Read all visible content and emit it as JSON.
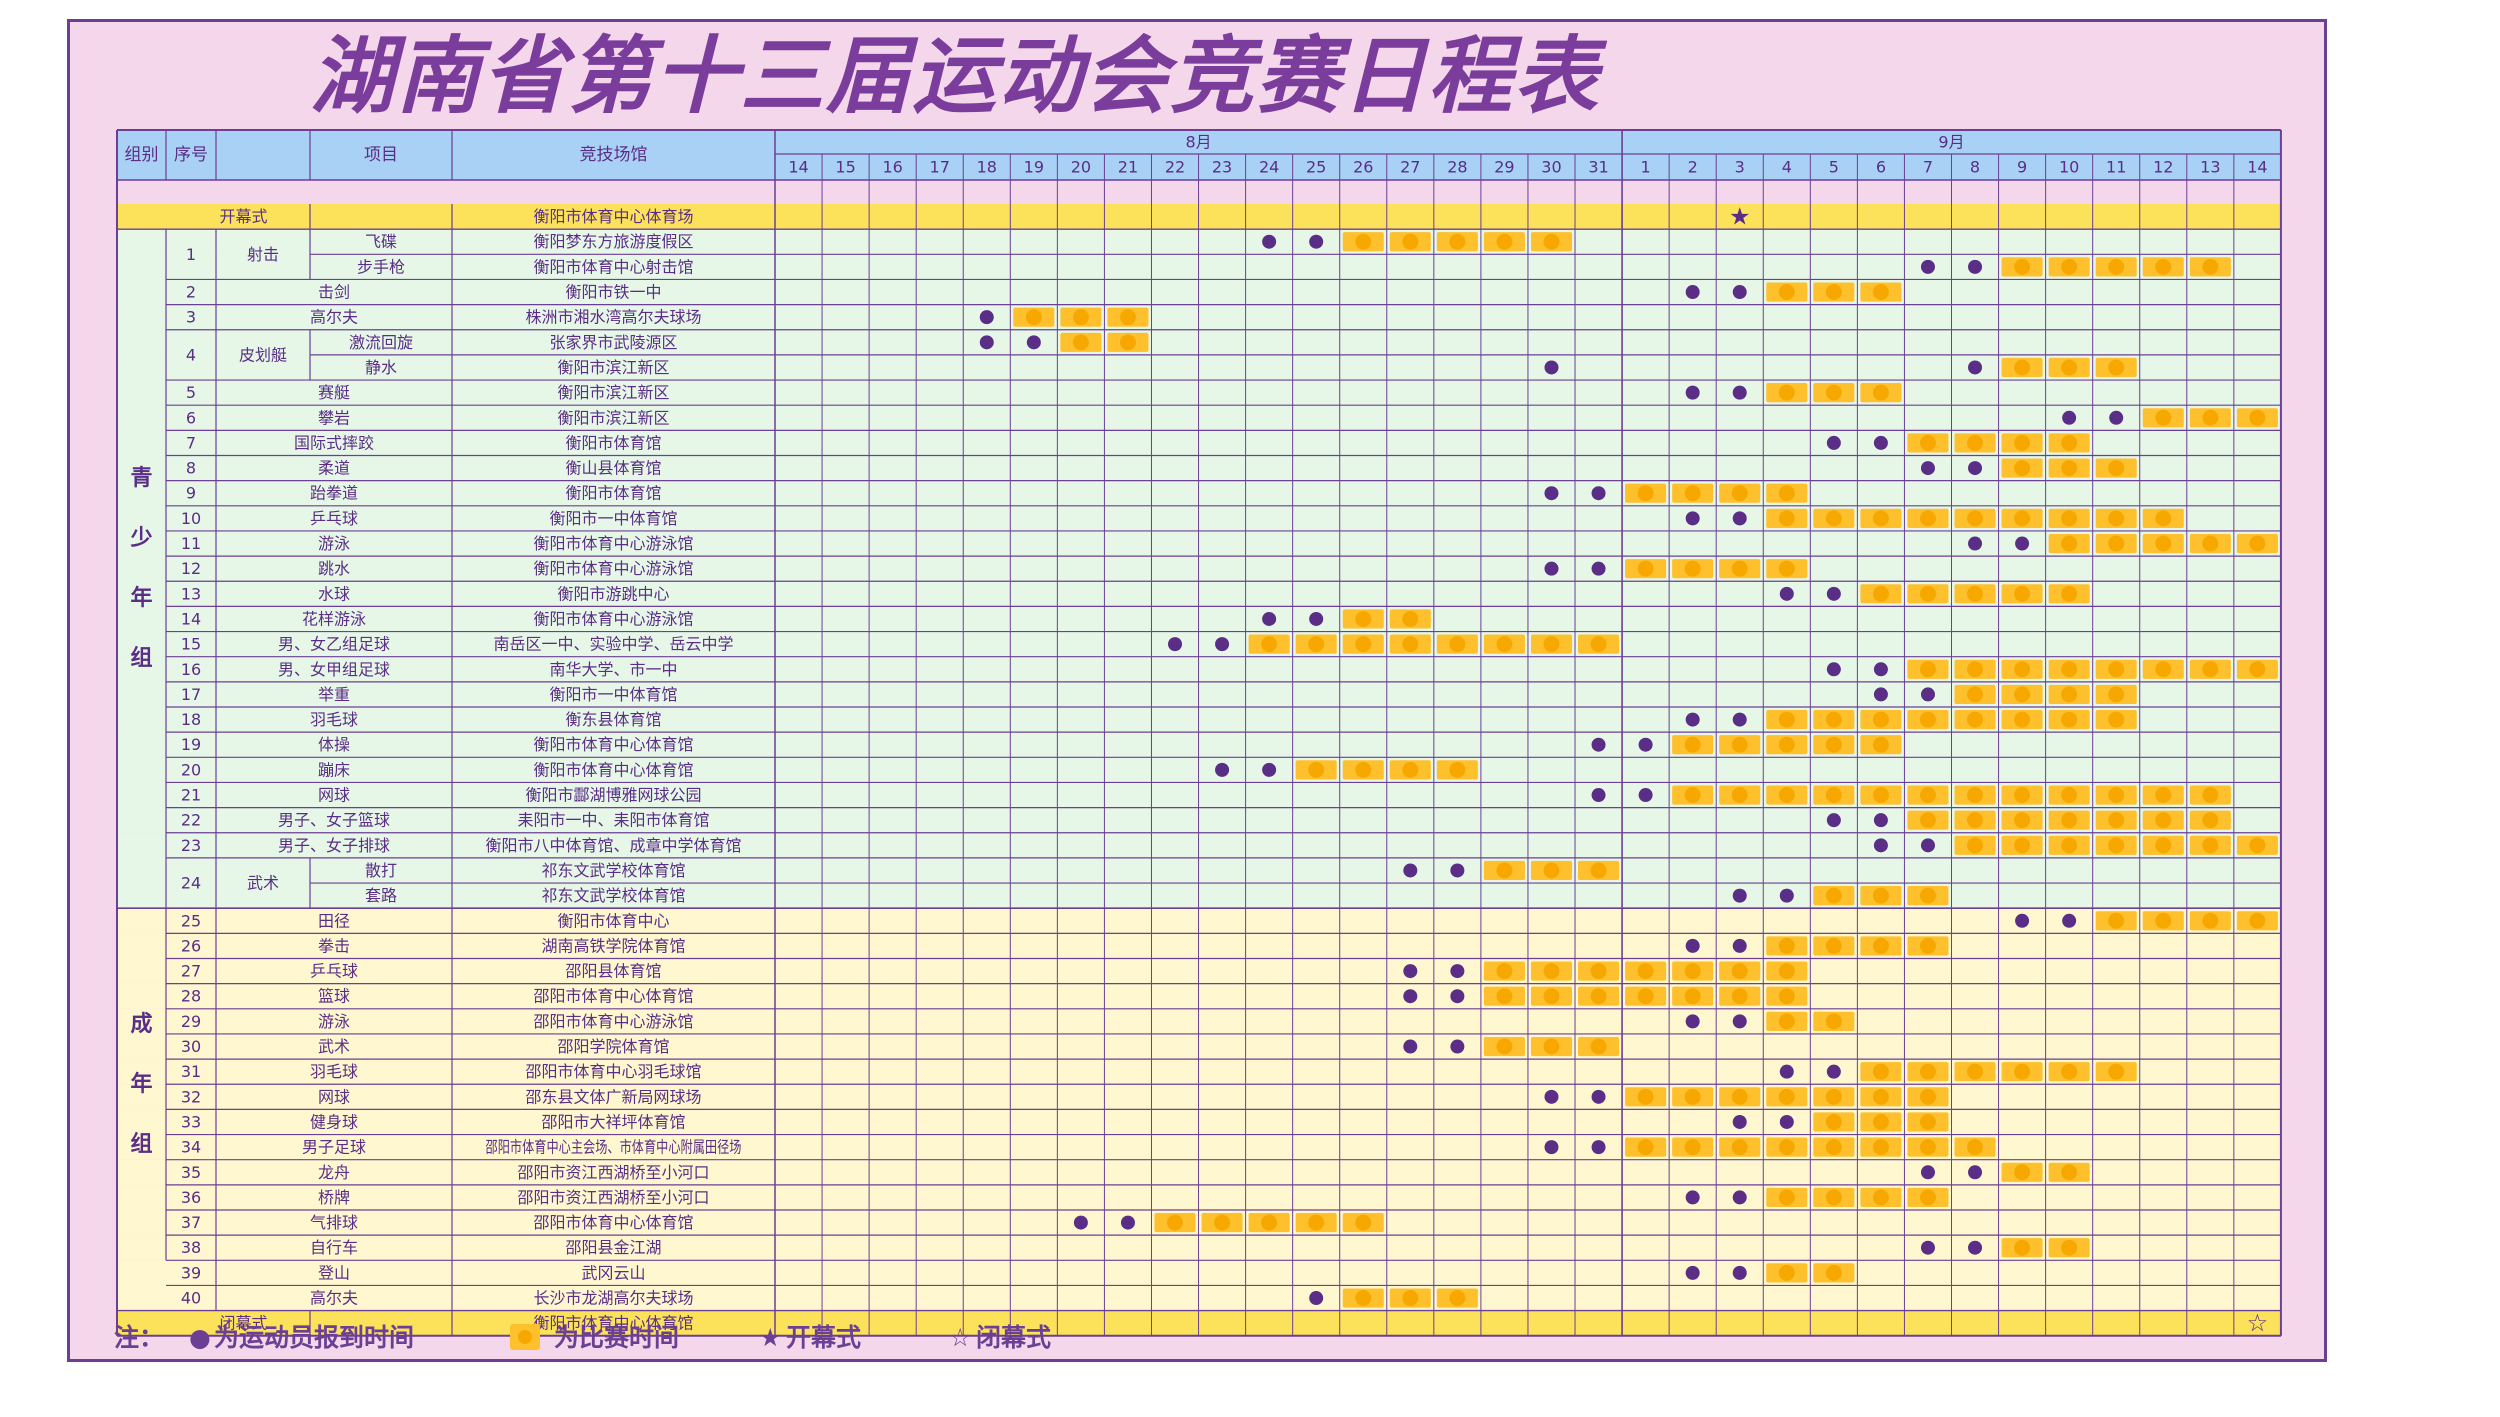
{
  "title": "湖南省第十三届运动会竞赛日程表",
  "colors": {
    "frame_bg": "#f4d7ea",
    "border": "#6b3f94",
    "header_bg": "#a9d0f5",
    "youth_bg": "#e6f7e8",
    "adult_bg": "#fef7cf",
    "ceremony_bg": "#fbe25a",
    "competition": "#ffc02e",
    "registration": "#5a2e86"
  },
  "headers": {
    "group": "组别",
    "index": "序号",
    "item": "项目",
    "venue": "竞技场馆",
    "aug": "8月",
    "sep": "9月"
  },
  "days": [
    {
      "k": "a14",
      "l": "14"
    },
    {
      "k": "a15",
      "l": "15"
    },
    {
      "k": "a16",
      "l": "16"
    },
    {
      "k": "a17",
      "l": "17"
    },
    {
      "k": "a18",
      "l": "18"
    },
    {
      "k": "a19",
      "l": "19"
    },
    {
      "k": "a20",
      "l": "20"
    },
    {
      "k": "a21",
      "l": "21"
    },
    {
      "k": "a22",
      "l": "22"
    },
    {
      "k": "a23",
      "l": "23"
    },
    {
      "k": "a24",
      "l": "24"
    },
    {
      "k": "a25",
      "l": "25"
    },
    {
      "k": "a26",
      "l": "26"
    },
    {
      "k": "a27",
      "l": "27"
    },
    {
      "k": "a28",
      "l": "28"
    },
    {
      "k": "a29",
      "l": "29"
    },
    {
      "k": "a30",
      "l": "30"
    },
    {
      "k": "a31",
      "l": "31"
    },
    {
      "k": "s1",
      "l": "1"
    },
    {
      "k": "s2",
      "l": "2"
    },
    {
      "k": "s3",
      "l": "3"
    },
    {
      "k": "s4",
      "l": "4"
    },
    {
      "k": "s5",
      "l": "5"
    },
    {
      "k": "s6",
      "l": "6"
    },
    {
      "k": "s7",
      "l": "7"
    },
    {
      "k": "s8",
      "l": "8"
    },
    {
      "k": "s9",
      "l": "9"
    },
    {
      "k": "s10",
      "l": "10"
    },
    {
      "k": "s11",
      "l": "11"
    },
    {
      "k": "s12",
      "l": "12"
    },
    {
      "k": "s13",
      "l": "13"
    },
    {
      "k": "s14",
      "l": "14"
    }
  ],
  "groups": [
    {
      "label": "青\n少\n年\n组",
      "rows": [
        1,
        27
      ]
    },
    {
      "label": "成\n年\n组",
      "rows": [
        28,
        41
      ]
    }
  ],
  "rows": [
    {
      "type": "ceremony",
      "item": "开幕式",
      "venue": "衡阳市体育中心体育场",
      "marks": {
        "s3": "star"
      }
    },
    {
      "no": "1",
      "cat": "射击",
      "item": "飞碟",
      "venue": "衡阳梦东方旅游度假区",
      "reg": [
        "a24",
        "a25"
      ],
      "comp": [
        "a26",
        "a27",
        "a28",
        "a29",
        "a30"
      ]
    },
    {
      "no": "1",
      "cat": "射击",
      "item": "步手枪",
      "venue": "衡阳市体育中心射击馆",
      "reg": [
        "s7",
        "s8"
      ],
      "comp": [
        "s9",
        "s10",
        "s11",
        "s12",
        "s13"
      ]
    },
    {
      "no": "2",
      "item": "击剑",
      "venue": "衡阳市铁一中",
      "reg": [
        "s2",
        "s3"
      ],
      "comp": [
        "s4",
        "s5",
        "s6"
      ]
    },
    {
      "no": "3",
      "item": "高尔夫",
      "venue": "株洲市湘水湾高尔夫球场",
      "reg": [
        "a18"
      ],
      "comp": [
        "a19",
        "a20",
        "a21"
      ]
    },
    {
      "no": "4",
      "cat": "皮划艇",
      "item": "激流回旋",
      "venue": "张家界市武陵源区",
      "reg": [
        "a18",
        "a19"
      ],
      "comp": [
        "a20",
        "a21"
      ]
    },
    {
      "no": "4",
      "cat": "皮划艇",
      "item": "静水",
      "venue": "衡阳市滨江新区",
      "reg": [
        "a30",
        "s8"
      ],
      "comp": [
        "s9",
        "s10",
        "s11"
      ]
    },
    {
      "no": "5",
      "item": "赛艇",
      "venue": "衡阳市滨江新区",
      "reg": [
        "s2",
        "s3"
      ],
      "comp": [
        "s4",
        "s5",
        "s6"
      ]
    },
    {
      "no": "6",
      "item": "攀岩",
      "venue": "衡阳市滨江新区",
      "reg": [
        "s10",
        "s11"
      ],
      "comp": [
        "s12",
        "s13",
        "s14"
      ]
    },
    {
      "no": "7",
      "item": "国际式摔跤",
      "venue": "衡阳市体育馆",
      "reg": [
        "s5",
        "s6"
      ],
      "comp": [
        "s7",
        "s8",
        "s9",
        "s10"
      ]
    },
    {
      "no": "8",
      "item": "柔道",
      "venue": "衡山县体育馆",
      "reg": [
        "s7",
        "s8"
      ],
      "comp": [
        "s9",
        "s10",
        "s11"
      ]
    },
    {
      "no": "9",
      "item": "跆拳道",
      "venue": "衡阳市体育馆",
      "reg": [
        "a30",
        "a31"
      ],
      "comp": [
        "s1",
        "s2",
        "s3",
        "s4"
      ]
    },
    {
      "no": "10",
      "item": "乒乓球",
      "venue": "衡阳市一中体育馆",
      "reg": [
        "s2",
        "s3"
      ],
      "comp": [
        "s4",
        "s5",
        "s6",
        "s7",
        "s8",
        "s9",
        "s10",
        "s11",
        "s12"
      ]
    },
    {
      "no": "11",
      "item": "游泳",
      "venue": "衡阳市体育中心游泳馆",
      "reg": [
        "s8",
        "s9"
      ],
      "comp": [
        "s10",
        "s11",
        "s12",
        "s13",
        "s14"
      ]
    },
    {
      "no": "12",
      "item": "跳水",
      "venue": "衡阳市体育中心游泳馆",
      "reg": [
        "a30",
        "a31"
      ],
      "comp": [
        "s1",
        "s2",
        "s3",
        "s4"
      ]
    },
    {
      "no": "13",
      "item": "水球",
      "venue": "衡阳市游跳中心",
      "reg": [
        "s4",
        "s5"
      ],
      "comp": [
        "s6",
        "s7",
        "s8",
        "s9",
        "s10"
      ]
    },
    {
      "no": "14",
      "item": "花样游泳",
      "venue": "衡阳市体育中心游泳馆",
      "reg": [
        "a24",
        "a25"
      ],
      "comp": [
        "a26",
        "a27"
      ]
    },
    {
      "no": "15",
      "item": "男、女乙组足球",
      "venue": "南岳区一中、实验中学、岳云中学",
      "reg": [
        "a22",
        "a23"
      ],
      "comp": [
        "a24",
        "a25",
        "a26",
        "a27",
        "a28",
        "a29",
        "a30",
        "a31"
      ]
    },
    {
      "no": "16",
      "item": "男、女甲组足球",
      "venue": "南华大学、市一中",
      "reg": [
        "s5",
        "s6"
      ],
      "comp": [
        "s7",
        "s8",
        "s9",
        "s10",
        "s11",
        "s12",
        "s13",
        "s14"
      ]
    },
    {
      "no": "17",
      "item": "举重",
      "venue": "衡阳市一中体育馆",
      "reg": [
        "s6",
        "s7"
      ],
      "comp": [
        "s8",
        "s9",
        "s10",
        "s11"
      ]
    },
    {
      "no": "18",
      "item": "羽毛球",
      "venue": "衡东县体育馆",
      "reg": [
        "s2",
        "s3"
      ],
      "comp": [
        "s4",
        "s5",
        "s6",
        "s7",
        "s8",
        "s9",
        "s10",
        "s11"
      ]
    },
    {
      "no": "19",
      "item": "体操",
      "venue": "衡阳市体育中心体育馆",
      "reg": [
        "a31",
        "s1"
      ],
      "comp": [
        "s2",
        "s3",
        "s4",
        "s5",
        "s6"
      ]
    },
    {
      "no": "20",
      "item": "蹦床",
      "venue": "衡阳市体育中心体育馆",
      "reg": [
        "a23",
        "a24"
      ],
      "comp": [
        "a25",
        "a26",
        "a27",
        "a28"
      ]
    },
    {
      "no": "21",
      "item": "网球",
      "venue": "衡阳市酃湖博雅网球公园",
      "reg": [
        "a31",
        "s1"
      ],
      "comp": [
        "s2",
        "s3",
        "s4",
        "s5",
        "s6",
        "s7",
        "s8",
        "s9",
        "s10",
        "s11",
        "s12",
        "s13"
      ]
    },
    {
      "no": "22",
      "item": "男子、女子篮球",
      "venue": "耒阳市一中、耒阳市体育馆",
      "reg": [
        "s5",
        "s6"
      ],
      "comp": [
        "s7",
        "s8",
        "s9",
        "s10",
        "s11",
        "s12",
        "s13"
      ]
    },
    {
      "no": "23",
      "item": "男子、女子排球",
      "venue": "衡阳市八中体育馆、成章中学体育馆",
      "reg": [
        "s6",
        "s7"
      ],
      "comp": [
        "s8",
        "s9",
        "s10",
        "s11",
        "s12",
        "s13",
        "s14"
      ]
    },
    {
      "no": "24",
      "cat": "武术",
      "item": "散打",
      "venue": "祁东文武学校体育馆",
      "reg": [
        "a27",
        "a28"
      ],
      "comp": [
        "a29",
        "a30",
        "a31"
      ]
    },
    {
      "no": "24",
      "cat": "武术",
      "item": "套路",
      "venue": "祁东文武学校体育馆",
      "reg": [
        "s3",
        "s4"
      ],
      "comp": [
        "s5",
        "s6",
        "s7"
      ]
    },
    {
      "no": "25",
      "item": "田径",
      "venue": "衡阳市体育中心",
      "reg": [
        "s9",
        "s10"
      ],
      "comp": [
        "s11",
        "s12",
        "s13",
        "s14"
      ]
    },
    {
      "no": "26",
      "item": "拳击",
      "venue": "湖南高铁学院体育馆",
      "reg": [
        "s2",
        "s3"
      ],
      "comp": [
        "s4",
        "s5",
        "s6",
        "s7"
      ]
    },
    {
      "no": "27",
      "item": "乒乓球",
      "venue": "邵阳县体育馆",
      "reg": [
        "a27",
        "a28"
      ],
      "comp": [
        "a29",
        "a30",
        "a31",
        "s1",
        "s2",
        "s3",
        "s4"
      ]
    },
    {
      "no": "28",
      "item": "篮球",
      "venue": "邵阳市体育中心体育馆",
      "reg": [
        "a27",
        "a28"
      ],
      "comp": [
        "a29",
        "a30",
        "a31",
        "s1",
        "s2",
        "s3",
        "s4"
      ]
    },
    {
      "no": "29",
      "item": "游泳",
      "venue": "邵阳市体育中心游泳馆",
      "reg": [
        "s2",
        "s3"
      ],
      "comp": [
        "s4",
        "s5"
      ]
    },
    {
      "no": "30",
      "item": "武术",
      "venue": "邵阳学院体育馆",
      "reg": [
        "a27",
        "a28"
      ],
      "comp": [
        "a29",
        "a30",
        "a31"
      ]
    },
    {
      "no": "31",
      "item": "羽毛球",
      "venue": "邵阳市体育中心羽毛球馆",
      "reg": [
        "s4",
        "s5"
      ],
      "comp": [
        "s6",
        "s7",
        "s8",
        "s9",
        "s10",
        "s11"
      ]
    },
    {
      "no": "32",
      "item": "网球",
      "venue": "邵东县文体广新局网球场",
      "reg": [
        "a30",
        "a31"
      ],
      "comp": [
        "s1",
        "s2",
        "s3",
        "s4",
        "s5",
        "s6",
        "s7"
      ]
    },
    {
      "no": "33",
      "item": "健身球",
      "venue": "邵阳市大祥坪体育馆",
      "reg": [
        "s3",
        "s4"
      ],
      "comp": [
        "s5",
        "s6",
        "s7"
      ]
    },
    {
      "no": "34",
      "item": "男子足球",
      "venue": "邵阳市体育中心主会场、市体育中心附属田径场",
      "reg": [
        "a30",
        "a31"
      ],
      "comp": [
        "s1",
        "s2",
        "s3",
        "s4",
        "s5",
        "s6",
        "s7",
        "s8"
      ]
    },
    {
      "no": "35",
      "item": "龙舟",
      "venue": "邵阳市资江西湖桥至小河口",
      "reg": [
        "s7",
        "s8"
      ],
      "comp": [
        "s9",
        "s10"
      ]
    },
    {
      "no": "36",
      "item": "桥牌",
      "venue": "邵阳市资江西湖桥至小河口",
      "reg": [
        "s2",
        "s3"
      ],
      "comp": [
        "s4",
        "s5",
        "s6",
        "s7"
      ]
    },
    {
      "no": "37",
      "item": "气排球",
      "venue": "邵阳市体育中心体育馆",
      "reg": [
        "a20",
        "a21"
      ],
      "comp": [
        "a22",
        "a23",
        "a24",
        "a25",
        "a26"
      ]
    },
    {
      "no": "38",
      "item": "自行车",
      "venue": "邵阳县金江湖",
      "reg": [
        "s7",
        "s8"
      ],
      "comp": [
        "s9",
        "s10"
      ]
    },
    {
      "no": "39",
      "item": "登山",
      "venue": "武冈云山",
      "reg": [
        "s2",
        "s3"
      ],
      "comp": [
        "s4",
        "s5"
      ]
    },
    {
      "no": "40",
      "item": "高尔夫",
      "venue": "长沙市龙湖高尔夫球场",
      "reg": [
        "a25"
      ],
      "comp": [
        "a26",
        "a27",
        "a28"
      ]
    },
    {
      "type": "ceremony",
      "item": "闭幕式",
      "venue": "衡阳市体育中心体育馆",
      "marks": {
        "s14": "hollowstar"
      }
    }
  ],
  "legend": {
    "note": "注：",
    "reg": "为运动员报到时间",
    "comp": "为比赛时间",
    "open": "开幕式",
    "close": "闭幕式"
  }
}
